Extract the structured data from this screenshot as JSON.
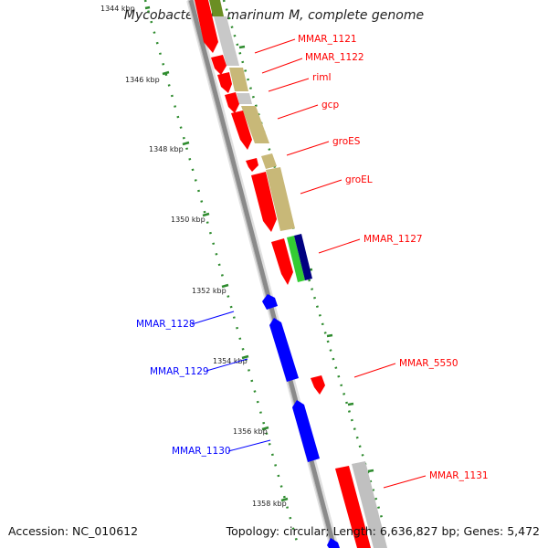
{
  "title": "Mycobacterium marinum M, complete genome",
  "accession": "Accession: NC_010612",
  "summary": "Topology: circular; Length: 6,636,827 bp; Genes: 5,472",
  "ticks": [
    "1344 kbp",
    "1346 kbp",
    "1348 kbp",
    "1350 kbp",
    "1352 kbp",
    "1354 kbp",
    "1356 kbp",
    "1358 kbp"
  ],
  "forward_labels": [
    "MMAR_1121",
    "MMAR_1122",
    "rimI",
    "gcp",
    "groES",
    "groEL",
    "MMAR_1127",
    "MMAR_5550",
    "MMAR_1131"
  ],
  "reverse_labels": [
    "MMAR_1128",
    "MMAR_1129",
    "MMAR_1130"
  ],
  "colors": {
    "forward": "#ff0000",
    "reverse": "#0000ff",
    "backbone": "#808080",
    "tick": "#006600",
    "cog_gray": "#b8b8b8",
    "cog_olive": "#c8b878",
    "cog_green": "#33cc33",
    "cog_navy": "#000080",
    "cog_olive_dark": "#6b8e23"
  }
}
